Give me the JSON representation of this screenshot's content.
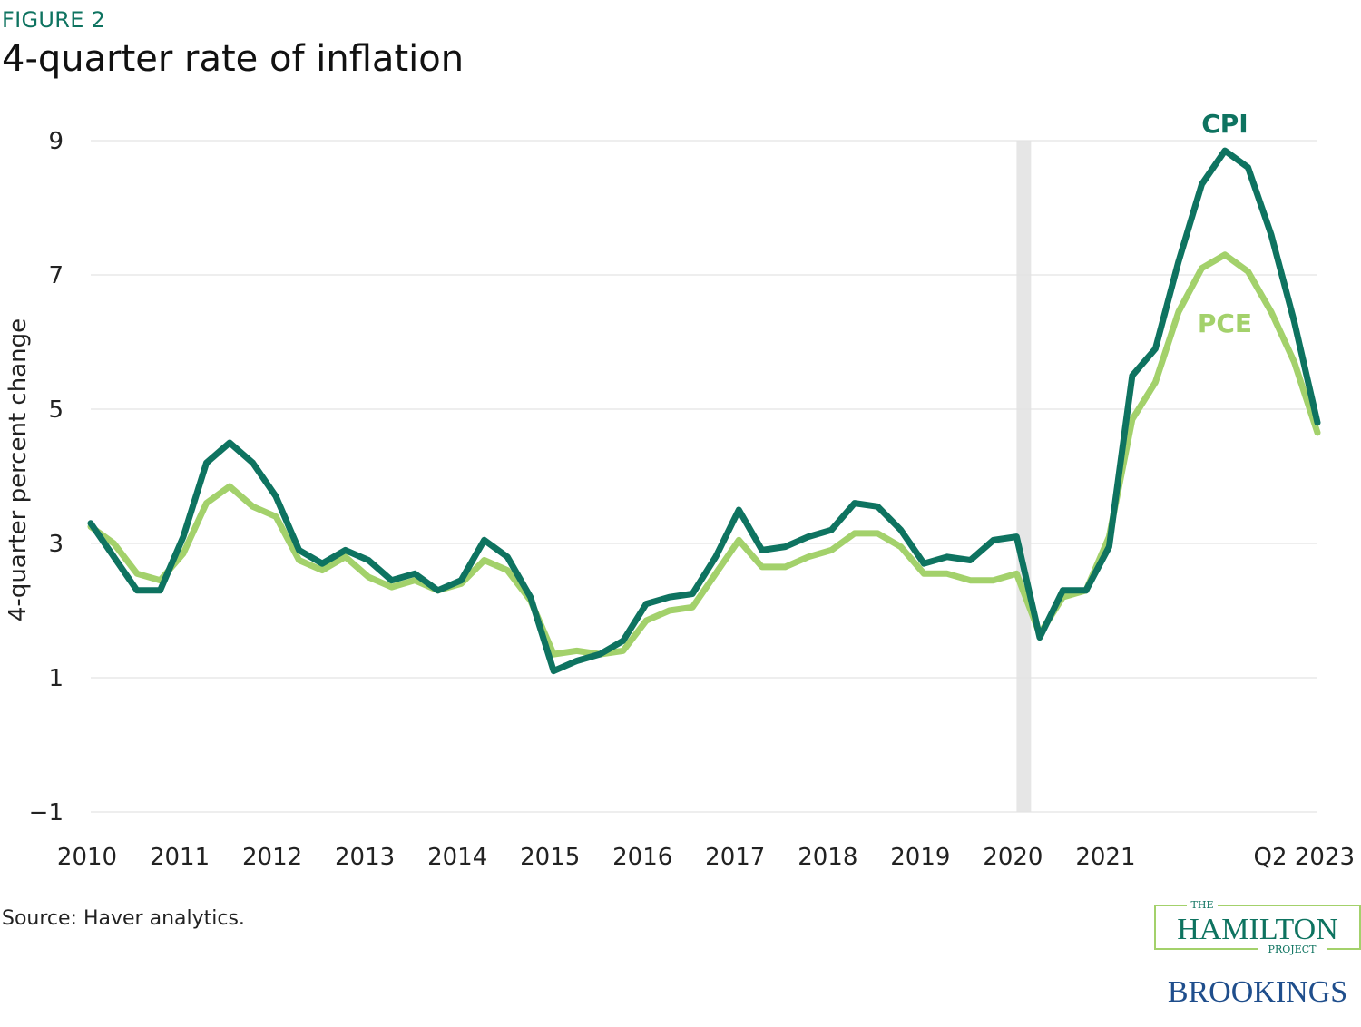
{
  "figure_label": "FIGURE 2",
  "source": "Source: Haver analytics.",
  "logos": {
    "hamilton_the": "THE",
    "hamilton_name": "HAMILTON",
    "hamilton_project": "PROJECT",
    "brookings": "BROOKINGS"
  },
  "colors": {
    "cpi": "#0e7360",
    "pce": "#a3d16b",
    "grid": "#e3e3e3",
    "recession": "#e6e6e6"
  },
  "chart_data": {
    "type": "line",
    "title": "4-quarter rate of inflation",
    "ylabel": "4-quarter percent change",
    "xlabel": "",
    "ylim": [
      -1,
      9
    ],
    "yticks": [
      -1,
      1,
      3,
      5,
      7,
      9
    ],
    "xlim": [
      2010,
      2023.25
    ],
    "xticks": [
      {
        "x": 2010,
        "label": "2010"
      },
      {
        "x": 2011,
        "label": "2011"
      },
      {
        "x": 2012,
        "label": "2012"
      },
      {
        "x": 2013,
        "label": "2013"
      },
      {
        "x": 2014,
        "label": "2014"
      },
      {
        "x": 2015,
        "label": "2015"
      },
      {
        "x": 2016,
        "label": "2016"
      },
      {
        "x": 2017,
        "label": "2017"
      },
      {
        "x": 2018,
        "label": "2018"
      },
      {
        "x": 2019,
        "label": "2019"
      },
      {
        "x": 2020,
        "label": "2020"
      },
      {
        "x": 2021,
        "label": "2021"
      },
      {
        "x": 2023.25,
        "label": "Q2 2023"
      }
    ],
    "recession_band": [
      2020.0,
      2020.08
    ],
    "grid": true,
    "x_start": 2010,
    "x_step": 0.25,
    "series": [
      {
        "name": "CPI",
        "values": [
          3.3,
          2.8,
          2.3,
          2.3,
          3.1,
          4.2,
          4.5,
          4.2,
          3.7,
          2.9,
          2.7,
          2.9,
          2.75,
          2.45,
          2.55,
          2.3,
          2.45,
          3.05,
          2.8,
          2.2,
          1.1,
          1.25,
          1.35,
          1.55,
          2.1,
          2.2,
          2.25,
          2.8,
          3.5,
          2.9,
          2.95,
          3.1,
          3.2,
          3.6,
          3.55,
          3.2,
          2.7,
          2.8,
          2.75,
          3.05,
          3.1,
          1.6,
          2.3,
          2.3,
          2.95,
          5.5,
          5.9,
          7.2,
          8.35,
          8.85,
          8.6,
          7.6,
          6.3,
          4.8
        ]
      },
      {
        "name": "PCE",
        "values": [
          3.25,
          3.0,
          2.55,
          2.45,
          2.85,
          3.6,
          3.85,
          3.55,
          3.4,
          2.75,
          2.6,
          2.8,
          2.5,
          2.35,
          2.45,
          2.3,
          2.4,
          2.75,
          2.6,
          2.15,
          1.35,
          1.4,
          1.35,
          1.4,
          1.85,
          2.0,
          2.05,
          2.55,
          3.05,
          2.65,
          2.65,
          2.8,
          2.9,
          3.15,
          3.15,
          2.95,
          2.55,
          2.55,
          2.45,
          2.45,
          2.55,
          1.65,
          2.2,
          2.3,
          3.1,
          4.85,
          5.4,
          6.45,
          7.1,
          7.3,
          7.05,
          6.45,
          5.7,
          4.65
        ]
      }
    ],
    "annotations": [
      {
        "text": "CPI",
        "series": "CPI"
      },
      {
        "text": "PCE",
        "series": "PCE"
      }
    ]
  }
}
